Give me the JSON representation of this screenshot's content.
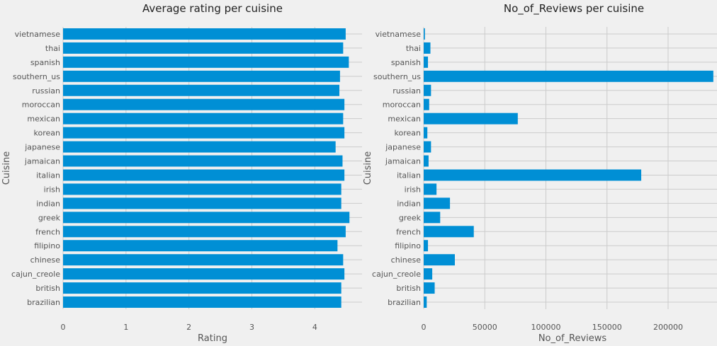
{
  "chart_data": [
    {
      "type": "bar",
      "orientation": "horizontal",
      "title": "Average rating per cuisine",
      "xlabel": "Rating",
      "ylabel": "Cuisine",
      "xlim": [
        0,
        4.75
      ],
      "xticks": [
        0,
        1,
        2,
        3,
        4
      ],
      "grid": true,
      "categories": [
        "brazilian",
        "british",
        "cajun_creole",
        "chinese",
        "filipino",
        "french",
        "greek",
        "indian",
        "irish",
        "italian",
        "jamaican",
        "japanese",
        "korean",
        "mexican",
        "moroccan",
        "russian",
        "southern_us",
        "spanish",
        "thai",
        "vietnamese"
      ],
      "values": [
        4.42,
        4.42,
        4.47,
        4.45,
        4.36,
        4.49,
        4.55,
        4.42,
        4.42,
        4.47,
        4.44,
        4.33,
        4.47,
        4.45,
        4.47,
        4.39,
        4.4,
        4.54,
        4.45,
        4.49
      ],
      "color": "#008fd5"
    },
    {
      "type": "bar",
      "orientation": "horizontal",
      "title": "No_of_Reviews per cuisine",
      "xlabel": "No_of_Reviews",
      "ylabel": "Cuisine",
      "xlim": [
        0,
        240000
      ],
      "xticks": [
        0,
        50000,
        100000,
        150000,
        200000
      ],
      "grid": true,
      "categories": [
        "brazilian",
        "british",
        "cajun_creole",
        "chinese",
        "filipino",
        "french",
        "greek",
        "indian",
        "irish",
        "italian",
        "jamaican",
        "japanese",
        "korean",
        "mexican",
        "moroccan",
        "russian",
        "southern_us",
        "spanish",
        "thai",
        "vietnamese"
      ],
      "values": [
        2500,
        9000,
        7000,
        25500,
        3500,
        41000,
        13500,
        21500,
        10500,
        178000,
        4000,
        6000,
        3000,
        77000,
        4500,
        6000,
        237000,
        3500,
        5500,
        1000
      ],
      "color": "#008fd5"
    }
  ]
}
